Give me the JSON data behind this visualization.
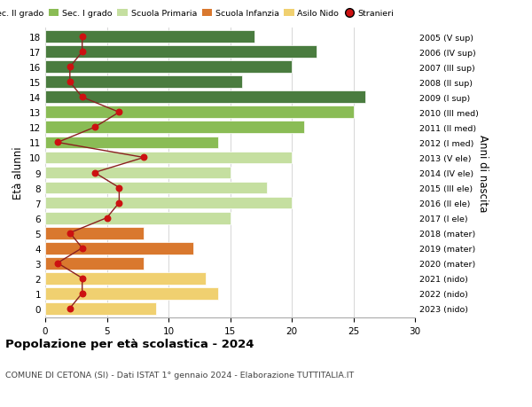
{
  "ages": [
    18,
    17,
    16,
    15,
    14,
    13,
    12,
    11,
    10,
    9,
    8,
    7,
    6,
    5,
    4,
    3,
    2,
    1,
    0
  ],
  "right_labels": [
    "2005 (V sup)",
    "2006 (IV sup)",
    "2007 (III sup)",
    "2008 (II sup)",
    "2009 (I sup)",
    "2010 (III med)",
    "2011 (II med)",
    "2012 (I med)",
    "2013 (V ele)",
    "2014 (IV ele)",
    "2015 (III ele)",
    "2016 (II ele)",
    "2017 (I ele)",
    "2018 (mater)",
    "2019 (mater)",
    "2020 (mater)",
    "2021 (nido)",
    "2022 (nido)",
    "2023 (nido)"
  ],
  "bar_values": [
    17,
    22,
    20,
    16,
    26,
    25,
    21,
    14,
    20,
    15,
    18,
    20,
    15,
    8,
    12,
    8,
    13,
    14,
    9
  ],
  "bar_colors": [
    "#4a7c3f",
    "#4a7c3f",
    "#4a7c3f",
    "#4a7c3f",
    "#4a7c3f",
    "#8abc55",
    "#8abc55",
    "#8abc55",
    "#c5dfa0",
    "#c5dfa0",
    "#c5dfa0",
    "#c5dfa0",
    "#c5dfa0",
    "#d9782e",
    "#d9782e",
    "#d9782e",
    "#f0d070",
    "#f0d070",
    "#f0d070"
  ],
  "stranieri_values": [
    3,
    3,
    2,
    2,
    3,
    6,
    4,
    1,
    8,
    4,
    6,
    6,
    5,
    2,
    3,
    1,
    3,
    3,
    2
  ],
  "legend_labels": [
    "Sec. II grado",
    "Sec. I grado",
    "Scuola Primaria",
    "Scuola Infanzia",
    "Asilo Nido",
    "Stranieri"
  ],
  "legend_colors": [
    "#4a7c3f",
    "#8abc55",
    "#c5dfa0",
    "#d9782e",
    "#f0d070",
    "#cc1111"
  ],
  "title_bold": "Popolazione per età scolastica - 2024",
  "subtitle": "COMUNE DI CETONA (SI) - Dati ISTAT 1° gennaio 2024 - Elaborazione TUTTITALIA.IT",
  "ylabel": "Età alunni",
  "right_ylabel": "Anni di nascita",
  "xlim": [
    0,
    30
  ],
  "xticks": [
    0,
    5,
    10,
    15,
    20,
    25,
    30
  ],
  "background_color": "#ffffff",
  "grid_color": "#d0d0d0",
  "stranieri_line_color": "#8b2020",
  "stranieri_dot_color": "#cc1111",
  "bar_height": 0.82
}
